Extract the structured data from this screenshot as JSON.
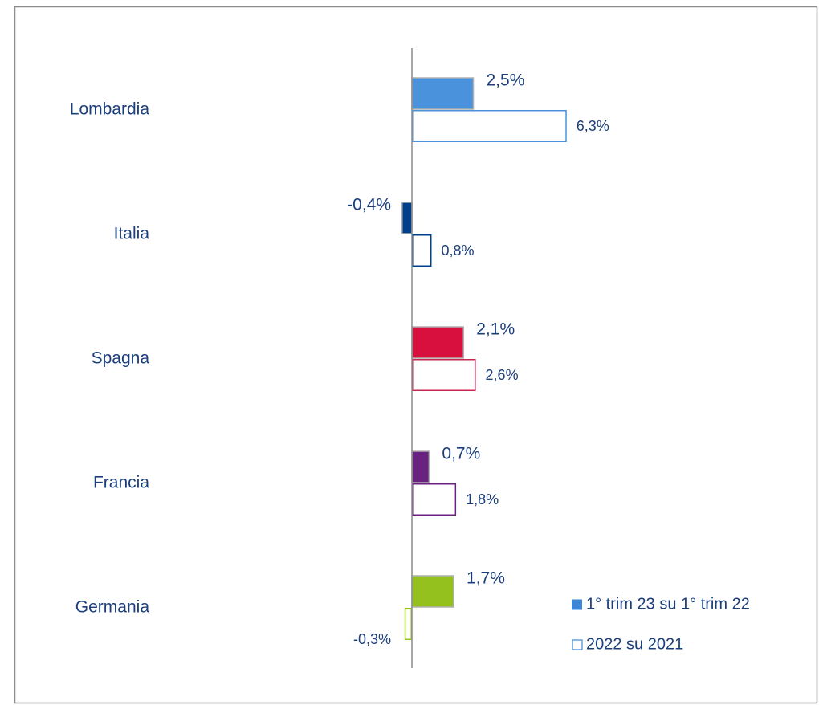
{
  "chart_data": {
    "type": "hbar",
    "categories": [
      "Lombardia",
      "Italia",
      "Spagna",
      "Francia",
      "Germania"
    ],
    "xlim": [
      -4,
      10
    ],
    "series": [
      {
        "name": "1° trim 23 su 1° trim 22",
        "color": "#3f85d6",
        "filled": true,
        "colors": [
          "#4a93dc",
          "#003f8c",
          "#d7103e",
          "#6a2280",
          "#95c11f"
        ],
        "values": [
          2.5,
          -0.4,
          2.1,
          0.7,
          1.7
        ],
        "value_labels": [
          "2,5%",
          "-0,4%",
          "2,1%",
          "0,7%",
          "1,7%"
        ]
      },
      {
        "name": "2022 su 2021",
        "color": "#3f85d6",
        "filled": false,
        "colors": [
          "#4a93dc",
          "#003f8c",
          "#c8264e",
          "#6a2280",
          "#95c11f"
        ],
        "values": [
          6.3,
          0.8,
          2.6,
          1.8,
          -0.3
        ],
        "value_labels": [
          "6,3%",
          "0,8%",
          "2,6%",
          "1,8%",
          "-0,3%"
        ]
      }
    ]
  }
}
